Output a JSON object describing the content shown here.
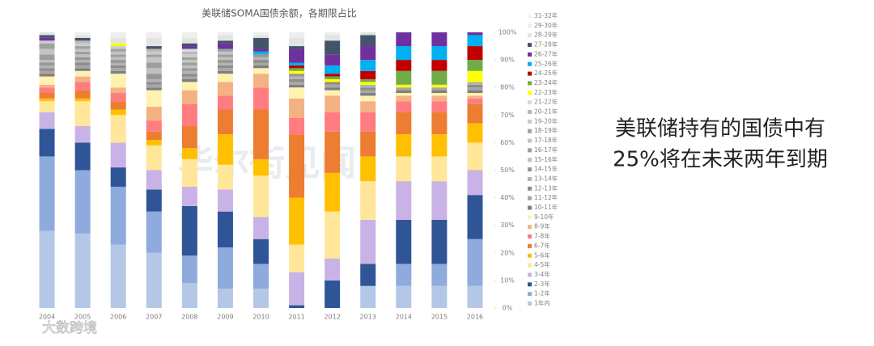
{
  "chart_data": {
    "type": "bar",
    "stacked": true,
    "title": "美联储SOMA国债余额，各期限占比",
    "annotation": [
      "美联储持有的国债中有",
      "25%将在未来两年到期"
    ],
    "watermarks": [
      "华尔街见闻",
      "大数跨境"
    ],
    "categories": [
      "2004",
      "2005",
      "2006",
      "2007",
      "2008",
      "2009",
      "2010",
      "2011",
      "2012",
      "2013",
      "2014",
      "2015",
      "2016"
    ],
    "ylim": [
      0,
      100
    ],
    "yaxis_side": "right",
    "yticks": [
      {
        "value": 0,
        "label": "0%"
      },
      {
        "value": 10,
        "label": "10%"
      },
      {
        "value": 20,
        "label": "20%"
      },
      {
        "value": 30,
        "label": "30%"
      },
      {
        "value": 40,
        "label": "40%"
      },
      {
        "value": 50,
        "label": "50%"
      },
      {
        "value": 60,
        "label": "60%"
      },
      {
        "value": 70,
        "label": "70%"
      },
      {
        "value": 80,
        "label": "80%"
      },
      {
        "value": 90,
        "label": "90%"
      },
      {
        "value": 100,
        "label": "100%"
      }
    ],
    "grid": false,
    "legend": "right",
    "series": [
      {
        "name": "1年内",
        "color": "#b4c7e7",
        "values": [
          28,
          27,
          23,
          20,
          9,
          7,
          7,
          0,
          0,
          8,
          8,
          8,
          8
        ]
      },
      {
        "name": "1-2年",
        "color": "#8faadc",
        "values": [
          27,
          23,
          21,
          15,
          10,
          15,
          9,
          0,
          0,
          0,
          8,
          8,
          17
        ]
      },
      {
        "name": "2-3年",
        "color": "#2f5597",
        "values": [
          10,
          10,
          7,
          8,
          18,
          13,
          9,
          1,
          10,
          8,
          16,
          16,
          16
        ]
      },
      {
        "name": "3-4年",
        "color": "#c9b3e6",
        "values": [
          6,
          6,
          9,
          7,
          7,
          8,
          8,
          12,
          8,
          16,
          14,
          14,
          9
        ]
      },
      {
        "name": "4-5年",
        "color": "#ffe699",
        "values": [
          4,
          9,
          10,
          9,
          10,
          9,
          15,
          10,
          17,
          14,
          9,
          9,
          10
        ]
      },
      {
        "name": "5-6年",
        "color": "#ffc000",
        "values": [
          1,
          1,
          2,
          2,
          4,
          11,
          6,
          17,
          14,
          9,
          8,
          8,
          7
        ]
      },
      {
        "name": "6-7年",
        "color": "#ed7d31",
        "values": [
          2,
          3,
          3,
          3,
          8,
          9,
          18,
          23,
          15,
          9,
          8,
          8,
          7
        ]
      },
      {
        "name": "7-8年",
        "color": "#ff7c80",
        "values": [
          2,
          3,
          3,
          4,
          8,
          5,
          8,
          6,
          7,
          7,
          4,
          4,
          2
        ]
      },
      {
        "name": "8-9年",
        "color": "#f4b183",
        "values": [
          1,
          2,
          2,
          5,
          5,
          5,
          5,
          7,
          6,
          4,
          2,
          2,
          1
        ]
      },
      {
        "name": "9-10年",
        "color": "#fff2b0",
        "values": [
          3,
          2,
          5,
          6,
          3,
          3,
          2,
          4,
          2,
          2,
          1,
          1,
          1
        ]
      },
      {
        "name": "10-11年",
        "color": "#7f7f7f",
        "values": [
          1,
          1,
          1,
          1,
          1,
          1,
          1,
          1,
          1,
          1,
          1,
          1,
          1
        ]
      },
      {
        "name": "11-12年",
        "color": "#a6a6a6",
        "values": [
          1,
          1,
          1,
          1,
          1,
          1,
          1,
          1,
          1,
          1,
          1,
          1,
          1
        ]
      },
      {
        "name": "12-13年",
        "color": "#8c8c8c",
        "values": [
          1,
          1,
          1,
          1,
          1,
          1,
          1,
          1,
          1,
          1,
          0,
          0,
          1
        ]
      },
      {
        "name": "13-14年",
        "color": "#b3b3b3",
        "values": [
          1,
          1,
          1,
          1,
          1,
          1,
          1,
          1,
          0,
          1,
          0,
          0,
          1
        ]
      },
      {
        "name": "14-15年",
        "color": "#969696",
        "values": [
          1,
          1,
          1,
          2,
          1,
          1,
          1,
          1,
          0,
          0,
          0,
          0,
          0
        ]
      },
      {
        "name": "15-16年",
        "color": "#bfbfbf",
        "values": [
          1,
          1,
          1,
          2,
          1,
          1,
          0,
          0,
          0,
          0,
          0,
          0,
          0
        ]
      },
      {
        "name": "16-17年",
        "color": "#9e9e9e",
        "values": [
          2,
          1,
          1,
          2,
          1,
          1,
          0,
          0,
          0,
          0,
          0,
          0,
          0
        ]
      },
      {
        "name": "17-18年",
        "color": "#c4c4c4",
        "values": [
          2,
          1,
          1,
          2,
          1,
          1,
          0,
          0,
          0,
          0,
          0,
          0,
          0
        ]
      },
      {
        "name": "18-19年",
        "color": "#a0a0a0",
        "values": [
          2,
          1,
          1,
          1,
          1,
          1,
          0,
          0,
          0,
          0,
          0,
          0,
          0
        ]
      },
      {
        "name": "19-20年",
        "color": "#cccccc",
        "values": [
          1,
          1,
          1,
          1,
          1,
          0,
          0,
          0,
          0,
          0,
          0,
          0,
          0
        ]
      },
      {
        "name": "20-21年",
        "color": "#b8b8b8",
        "values": [
          0,
          1,
          0,
          1,
          1,
          0,
          0,
          0,
          0,
          0,
          0,
          0,
          0
        ]
      },
      {
        "name": "21-22年",
        "color": "#d9d9d9",
        "values": [
          0,
          0,
          0,
          0,
          1,
          0,
          0,
          0,
          0,
          0,
          0,
          0,
          0
        ]
      },
      {
        "name": "22-23年",
        "color": "#ffff00",
        "values": [
          0,
          0,
          1,
          0,
          0,
          0,
          0,
          1,
          1,
          1,
          1,
          1,
          4
        ]
      },
      {
        "name": "23-24年",
        "color": "#70ad47",
        "values": [
          0,
          0,
          0,
          0,
          0,
          0,
          0,
          1,
          1,
          1,
          5,
          5,
          4
        ]
      },
      {
        "name": "24-25年",
        "color": "#c00000",
        "values": [
          0,
          0,
          0,
          0,
          0,
          0,
          0,
          1,
          1,
          3,
          4,
          4,
          5
        ]
      },
      {
        "name": "25-26年",
        "color": "#00b0f0",
        "values": [
          0,
          0,
          0,
          0,
          0,
          0,
          1,
          1,
          3,
          4,
          5,
          5,
          4
        ]
      },
      {
        "name": "26-27年",
        "color": "#7030a0",
        "values": [
          1,
          0,
          0,
          0,
          1,
          2,
          1,
          5,
          4,
          5,
          5,
          5,
          1
        ]
      },
      {
        "name": "27-28年",
        "color": "#44546a",
        "values": [
          1,
          1,
          0,
          1,
          1,
          1,
          4,
          1,
          5,
          4,
          0,
          0,
          0
        ]
      },
      {
        "name": "28-29年",
        "color": "#e3e3e3",
        "values": [
          1,
          1,
          2,
          3,
          2,
          2,
          1,
          3,
          2,
          1,
          0,
          0,
          0
        ]
      },
      {
        "name": "29-30年",
        "color": "#eeeeee",
        "values": [
          0,
          1,
          2,
          2,
          2,
          1,
          1,
          2,
          1,
          0,
          0,
          0,
          0
        ]
      },
      {
        "name": "31-32年",
        "color": "#f5f5f5",
        "values": [
          0,
          0,
          0,
          0,
          0,
          0,
          0,
          0,
          0,
          0,
          0,
          0,
          0
        ]
      }
    ]
  }
}
